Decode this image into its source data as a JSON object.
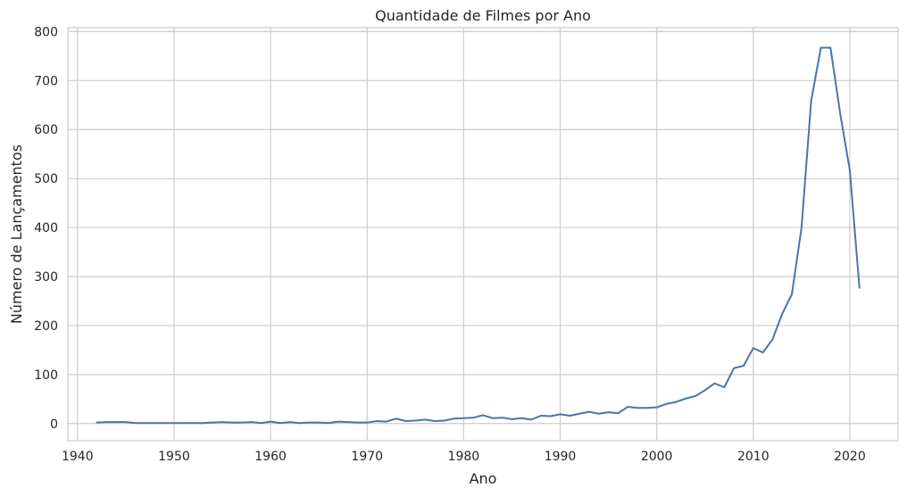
{
  "chart_data": {
    "type": "line",
    "title": "Quantidade de Filmes por Ano",
    "xlabel": "Ano",
    "ylabel": "Número de Lançamentos",
    "xlim": [
      1939,
      2025
    ],
    "ylim": [
      -35,
      808
    ],
    "xticks": [
      1940,
      1950,
      1960,
      1970,
      1980,
      1990,
      2000,
      2010,
      2020
    ],
    "yticks": [
      0,
      100,
      200,
      300,
      400,
      500,
      600,
      700,
      800
    ],
    "grid": true,
    "series": [
      {
        "color": "#4c72b0",
        "x": [
          1942,
          1943,
          1944,
          1945,
          1946,
          1947,
          1948,
          1949,
          1950,
          1951,
          1952,
          1953,
          1954,
          1955,
          1956,
          1957,
          1958,
          1959,
          1960,
          1961,
          1962,
          1963,
          1964,
          1965,
          1966,
          1967,
          1968,
          1969,
          1970,
          1971,
          1972,
          1973,
          1974,
          1975,
          1976,
          1977,
          1978,
          1979,
          1980,
          1981,
          1982,
          1983,
          1984,
          1985,
          1986,
          1987,
          1988,
          1989,
          1990,
          1991,
          1992,
          1993,
          1994,
          1995,
          1996,
          1997,
          1998,
          1999,
          2000,
          2001,
          2002,
          2003,
          2004,
          2005,
          2006,
          2007,
          2008,
          2009,
          2010,
          2011,
          2012,
          2013,
          2014,
          2015,
          2016,
          2017,
          2018,
          2019,
          2020,
          2021
        ],
        "y": [
          2,
          3,
          3,
          3,
          1,
          1,
          1,
          1,
          1,
          1,
          1,
          1,
          2,
          3,
          2,
          2,
          3,
          1,
          4,
          1,
          3,
          1,
          2,
          2,
          1,
          4,
          3,
          2,
          2,
          5,
          4,
          10,
          5,
          6,
          8,
          5,
          6,
          10,
          11,
          12,
          17,
          11,
          12,
          9,
          11,
          8,
          16,
          15,
          19,
          16,
          20,
          24,
          20,
          23,
          21,
          34,
          32,
          32,
          33,
          40,
          44,
          51,
          56,
          68,
          82,
          74,
          113,
          118,
          154,
          145,
          172,
          224,
          264,
          400,
          659,
          767,
          767,
          633,
          517,
          277
        ]
      }
    ]
  }
}
